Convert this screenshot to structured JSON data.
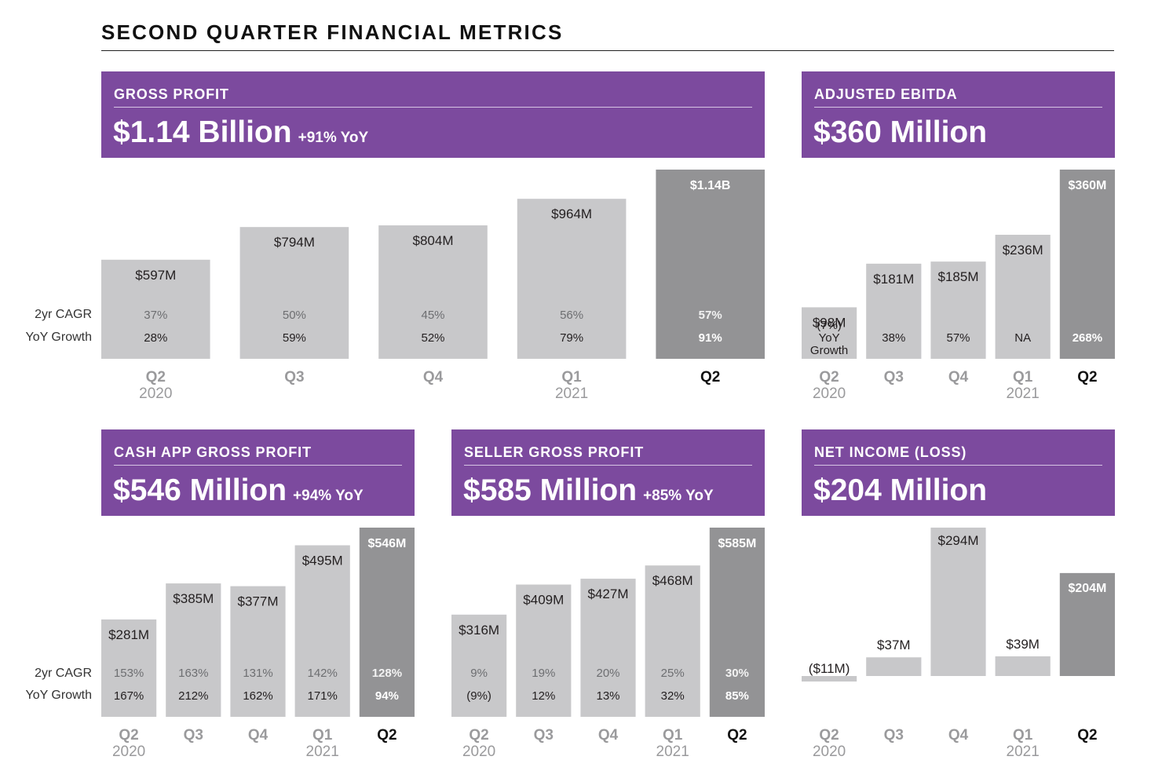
{
  "title": "SECOND QUARTER FINANCIAL METRICS",
  "row_labels": {
    "cagr": "2yr CAGR",
    "yoy": "YoY Growth"
  },
  "colors": {
    "header": "#7c4a9e",
    "bar": "#c8c8ca",
    "highlight_bar": "#939395",
    "axis_gray": "#9a9a9c"
  },
  "chart_data": [
    {
      "id": "gross-profit",
      "type": "bar",
      "header": {
        "label": "GROSS PROFIT",
        "value": "$1.14 Billion",
        "yoy": "+91% YoY"
      },
      "categories": [
        "Q2",
        "Q3",
        "Q4",
        "Q1",
        "Q2"
      ],
      "year_labels": [
        "2020",
        "",
        "",
        "2021",
        ""
      ],
      "values": [
        597,
        794,
        804,
        964,
        1140
      ],
      "value_labels": [
        "$597M",
        "$794M",
        "$804M",
        "$964M",
        "$1.14B"
      ],
      "cagr": [
        "37%",
        "50%",
        "45%",
        "56%",
        "57%"
      ],
      "yoy": [
        "28%",
        "59%",
        "52%",
        "79%",
        "91%"
      ],
      "highlight": 4,
      "ylim": [
        0,
        1140
      ],
      "unit": "$M"
    },
    {
      "id": "adjusted-ebitda",
      "type": "bar",
      "header": {
        "label": "ADJUSTED EBITDA",
        "value": "$360 Million",
        "yoy": ""
      },
      "categories": [
        "Q2",
        "Q3",
        "Q4",
        "Q1",
        "Q2"
      ],
      "year_labels": [
        "2020",
        "",
        "",
        "2021",
        ""
      ],
      "values": [
        98,
        181,
        185,
        236,
        360
      ],
      "value_labels": [
        "$98M",
        "$181M",
        "$185M",
        "$236M",
        "$360M"
      ],
      "cagr": [
        "",
        "",
        "",
        "",
        ""
      ],
      "yoy": [
        "(7%)\nYoY\nGrowth",
        "38%",
        "57%",
        "NA",
        "268%"
      ],
      "highlight": 4,
      "ylim": [
        0,
        360
      ],
      "unit": "$M"
    },
    {
      "id": "cash-app-gross-profit",
      "type": "bar",
      "header": {
        "label": "CASH APP GROSS PROFIT",
        "value": "$546 Million",
        "yoy": "+94% YoY"
      },
      "categories": [
        "Q2",
        "Q3",
        "Q4",
        "Q1",
        "Q2"
      ],
      "year_labels": [
        "2020",
        "",
        "",
        "2021",
        ""
      ],
      "values": [
        281,
        385,
        377,
        495,
        546
      ],
      "value_labels": [
        "$281M",
        "$385M",
        "$377M",
        "$495M",
        "$546M"
      ],
      "cagr": [
        "153%",
        "163%",
        "131%",
        "142%",
        "128%"
      ],
      "yoy": [
        "167%",
        "212%",
        "162%",
        "171%",
        "94%"
      ],
      "highlight": 4,
      "ylim": [
        0,
        546
      ],
      "unit": "$M"
    },
    {
      "id": "seller-gross-profit",
      "type": "bar",
      "header": {
        "label": "SELLER GROSS PROFIT",
        "value": "$585 Million",
        "yoy": "+85% YoY"
      },
      "categories": [
        "Q2",
        "Q3",
        "Q4",
        "Q1",
        "Q2"
      ],
      "year_labels": [
        "2020",
        "",
        "",
        "2021",
        ""
      ],
      "values": [
        316,
        409,
        427,
        468,
        585
      ],
      "value_labels": [
        "$316M",
        "$409M",
        "$427M",
        "$468M",
        "$585M"
      ],
      "cagr": [
        "9%",
        "19%",
        "20%",
        "25%",
        "30%"
      ],
      "yoy": [
        "(9%)",
        "12%",
        "13%",
        "32%",
        "85%"
      ],
      "highlight": 4,
      "ylim": [
        0,
        585
      ],
      "unit": "$M"
    },
    {
      "id": "net-income",
      "type": "bar",
      "header": {
        "label": "NET INCOME (LOSS)",
        "value": "$204 Million",
        "yoy": ""
      },
      "categories": [
        "Q2",
        "Q3",
        "Q4",
        "Q1",
        "Q2"
      ],
      "year_labels": [
        "2020",
        "",
        "",
        "2021",
        ""
      ],
      "values": [
        -11,
        37,
        294,
        39,
        204
      ],
      "value_labels": [
        "($11M)",
        "$37M",
        "$294M",
        "$39M",
        "$204M"
      ],
      "cagr": [
        "",
        "",
        "",
        "",
        ""
      ],
      "yoy": [
        "",
        "",
        "",
        "",
        ""
      ],
      "highlight": 4,
      "ylim": [
        -11,
        294
      ],
      "unit": "$M"
    }
  ]
}
